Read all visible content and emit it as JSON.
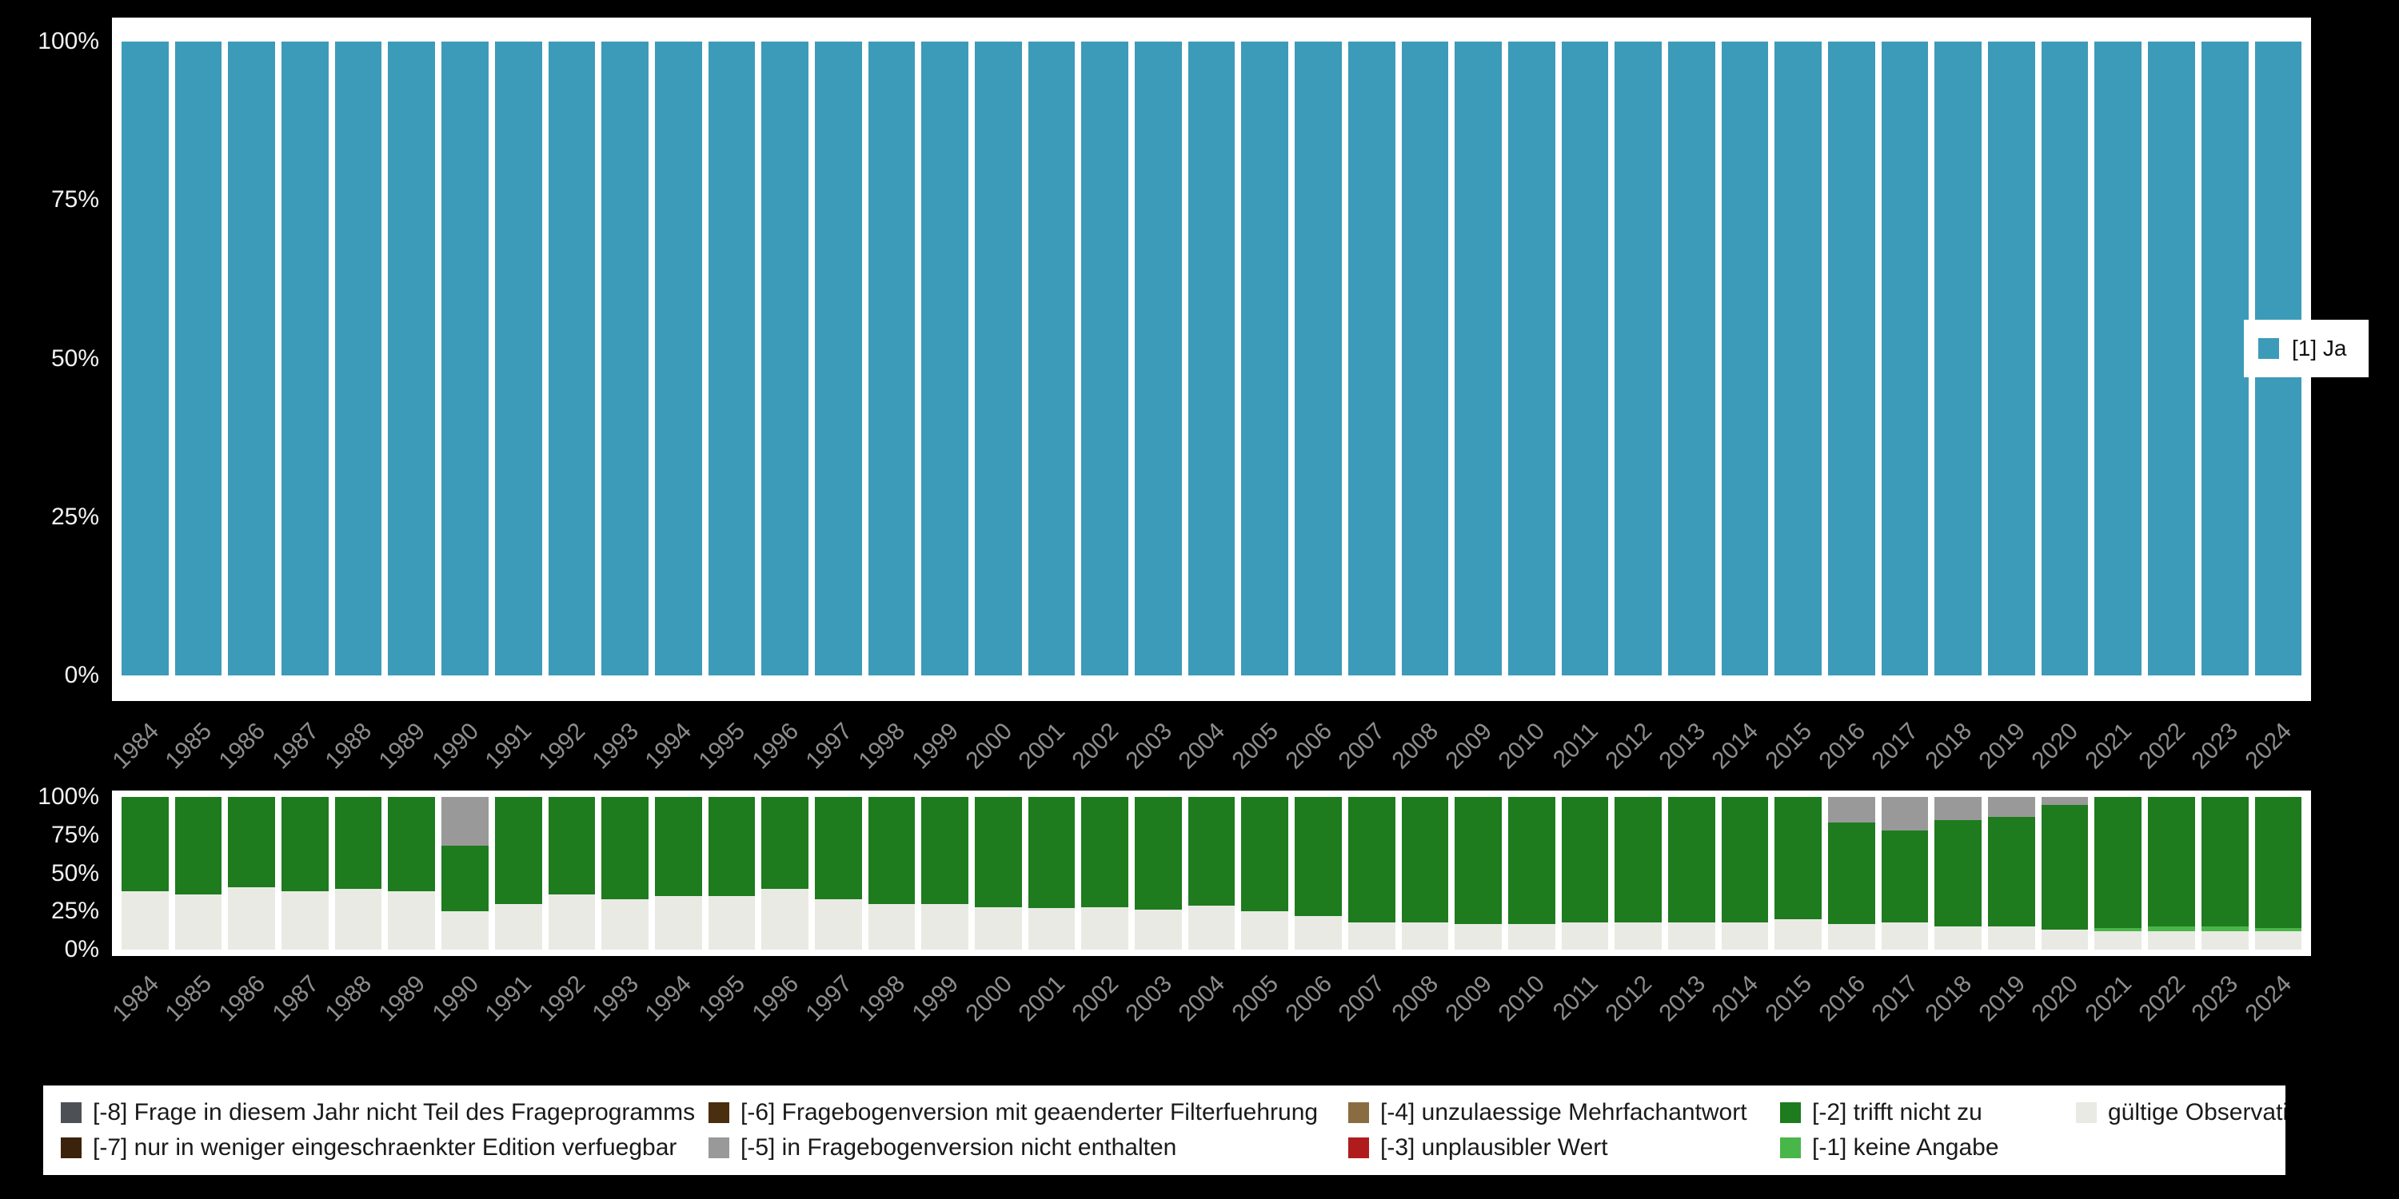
{
  "page": {
    "background": "#000000"
  },
  "legend_right": {
    "items": [
      {
        "label": "[1] Ja",
        "color": "#3c9bb8"
      }
    ]
  },
  "legend_bottom": {
    "items": [
      {
        "label": "[-8] Frage in diesem Jahr nicht Teil des Frageprogramms",
        "color": "#4d5156"
      },
      {
        "label": "[-6] Fragebogenversion mit geaenderter Filterfuehrung",
        "color": "#4a2e10"
      },
      {
        "label": "[-4] unzulaessige Mehrfachantwort",
        "color": "#8a6c43"
      },
      {
        "label": "[-2] trifft nicht zu",
        "color": "#1e7b1e"
      },
      {
        "label": "gültige Observationen",
        "color": "#eaeae4"
      },
      {
        "label": "[-7] nur in weniger eingeschraenkter Edition verfuegbar",
        "color": "#3b230b"
      },
      {
        "label": "[-5] in Fragebogenversion nicht enthalten",
        "color": "#999999"
      },
      {
        "label": "[-3] unplausibler Wert",
        "color": "#b01c1c"
      },
      {
        "label": "[-1] keine Angabe",
        "color": "#49b649"
      }
    ]
  },
  "chart_data": [
    {
      "type": "bar",
      "stacked": true,
      "title": "",
      "xlabel": "",
      "ylabel": "",
      "ylim": [
        0,
        100
      ],
      "grid": false,
      "legend_position": "right",
      "yticks": [
        {
          "label": "100%",
          "value": 100
        },
        {
          "label": "75%",
          "value": 75
        },
        {
          "label": "50%",
          "value": 50
        },
        {
          "label": "25%",
          "value": 25
        },
        {
          "label": "0%",
          "value": 0
        }
      ],
      "categories": [
        "1984",
        "1985",
        "1986",
        "1987",
        "1988",
        "1989",
        "1990",
        "1991",
        "1992",
        "1993",
        "1994",
        "1995",
        "1996",
        "1997",
        "1998",
        "1999",
        "2000",
        "2001",
        "2002",
        "2003",
        "2004",
        "2005",
        "2006",
        "2007",
        "2008",
        "2009",
        "2010",
        "2011",
        "2012",
        "2013",
        "2014",
        "2015",
        "2016",
        "2017",
        "2018",
        "2019",
        "2020",
        "2021",
        "2022",
        "2023",
        "2024"
      ],
      "series": [
        {
          "name": "[1] Ja",
          "color": "#3c9bb8",
          "values": [
            100,
            100,
            100,
            100,
            100,
            100,
            100,
            100,
            100,
            100,
            100,
            100,
            100,
            100,
            100,
            100,
            100,
            100,
            100,
            100,
            100,
            100,
            100,
            100,
            100,
            100,
            100,
            100,
            100,
            100,
            100,
            100,
            100,
            100,
            100,
            100,
            100,
            100,
            100,
            100,
            100
          ]
        }
      ]
    },
    {
      "type": "bar",
      "stacked": true,
      "title": "",
      "xlabel": "",
      "ylabel": "",
      "ylim": [
        0,
        100
      ],
      "grid": false,
      "legend_position": "bottom",
      "yticks": [
        {
          "label": "100%",
          "value": 100
        },
        {
          "label": "75%",
          "value": 75
        },
        {
          "label": "50%",
          "value": 50
        },
        {
          "label": "25%",
          "value": 25
        },
        {
          "label": "0%",
          "value": 0
        }
      ],
      "categories": [
        "1984",
        "1985",
        "1986",
        "1987",
        "1988",
        "1989",
        "1990",
        "1991",
        "1992",
        "1993",
        "1994",
        "1995",
        "1996",
        "1997",
        "1998",
        "1999",
        "2000",
        "2001",
        "2002",
        "2003",
        "2004",
        "2005",
        "2006",
        "2007",
        "2008",
        "2009",
        "2010",
        "2011",
        "2012",
        "2013",
        "2014",
        "2015",
        "2016",
        "2017",
        "2018",
        "2019",
        "2020",
        "2021",
        "2022",
        "2023",
        "2024"
      ],
      "series": [
        {
          "name": "gültige Observationen",
          "color": "#eaeae4",
          "values": [
            38,
            36,
            41,
            38,
            40,
            38,
            25,
            30,
            36,
            33,
            35,
            35,
            40,
            33,
            30,
            30,
            28,
            27,
            28,
            26,
            29,
            25,
            22,
            18,
            18,
            17,
            17,
            18,
            18,
            18,
            18,
            20,
            17,
            18,
            15,
            15,
            13,
            12,
            12,
            12,
            12
          ]
        },
        {
          "name": "[-1] keine Angabe",
          "color": "#49b649",
          "values": [
            0,
            0,
            0,
            0,
            0,
            0,
            0,
            0,
            0,
            0,
            0,
            0,
            0,
            0,
            0,
            0,
            0,
            0,
            0,
            0,
            0,
            0,
            0,
            0,
            0,
            0,
            0,
            0,
            0,
            0,
            0,
            0,
            0,
            0,
            0,
            0,
            0,
            2,
            3,
            3,
            2
          ]
        },
        {
          "name": "[-2] trifft nicht zu",
          "color": "#1e7b1e",
          "values": [
            62,
            64,
            59,
            62,
            60,
            62,
            43,
            70,
            64,
            67,
            65,
            65,
            60,
            67,
            70,
            70,
            72,
            73,
            72,
            74,
            71,
            75,
            78,
            82,
            82,
            83,
            83,
            82,
            82,
            82,
            82,
            80,
            66,
            60,
            70,
            72,
            82,
            86,
            85,
            85,
            86
          ]
        },
        {
          "name": "[-5] in Fragebogenversion nicht enthalten",
          "color": "#999999",
          "values": [
            0,
            0,
            0,
            0,
            0,
            0,
            32,
            0,
            0,
            0,
            0,
            0,
            0,
            0,
            0,
            0,
            0,
            0,
            0,
            0,
            0,
            0,
            0,
            0,
            0,
            0,
            0,
            0,
            0,
            0,
            0,
            0,
            17,
            22,
            15,
            13,
            5,
            0,
            0,
            0,
            0
          ]
        }
      ]
    }
  ]
}
